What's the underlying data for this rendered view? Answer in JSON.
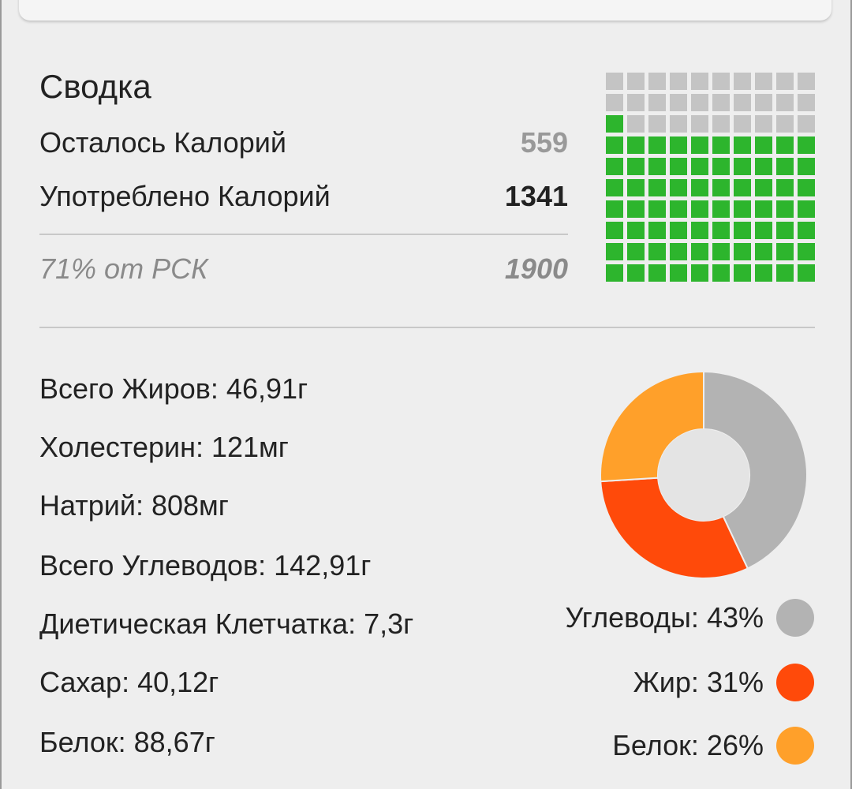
{
  "summary": {
    "title": "Сводка",
    "remaining_label": "Осталось Калорий",
    "remaining_value": "559",
    "consumed_label": "Употреблено Калорий",
    "consumed_value": "1341",
    "rdi_label": "71% от РСК",
    "rdi_value": "1900"
  },
  "waffle": {
    "total_cells": 100,
    "filled_cells": 71,
    "filled_color": "#2db52d",
    "empty_color": "#c4c4c4"
  },
  "nutrients": [
    {
      "text": "Всего Жиров: 46,91г"
    },
    {
      "text": "Холестерин: 121мг"
    },
    {
      "text": "Натрий: 808мг"
    },
    {
      "text": "Всего Углеводов: 142,91г"
    },
    {
      "text": "Диетическая Клетчатка: 7,3г"
    },
    {
      "text": "Сахар: 40,12г"
    },
    {
      "text": "Белок: 88,67г"
    }
  ],
  "chart_data": {
    "type": "pie",
    "title": "",
    "categories": [
      "Углеводы",
      "Жир",
      "Белок"
    ],
    "values": [
      43,
      31,
      26
    ],
    "colors": [
      "#b3b3b3",
      "#ff4a0a",
      "#ffa02a"
    ],
    "legend": "right-bottom"
  },
  "legend": [
    {
      "text": "Углеводы: 43%",
      "color": "#b3b3b3"
    },
    {
      "text": "Жир: 31%",
      "color": "#ff4a0a"
    },
    {
      "text": "Белок: 26%",
      "color": "#ffa02a"
    }
  ]
}
